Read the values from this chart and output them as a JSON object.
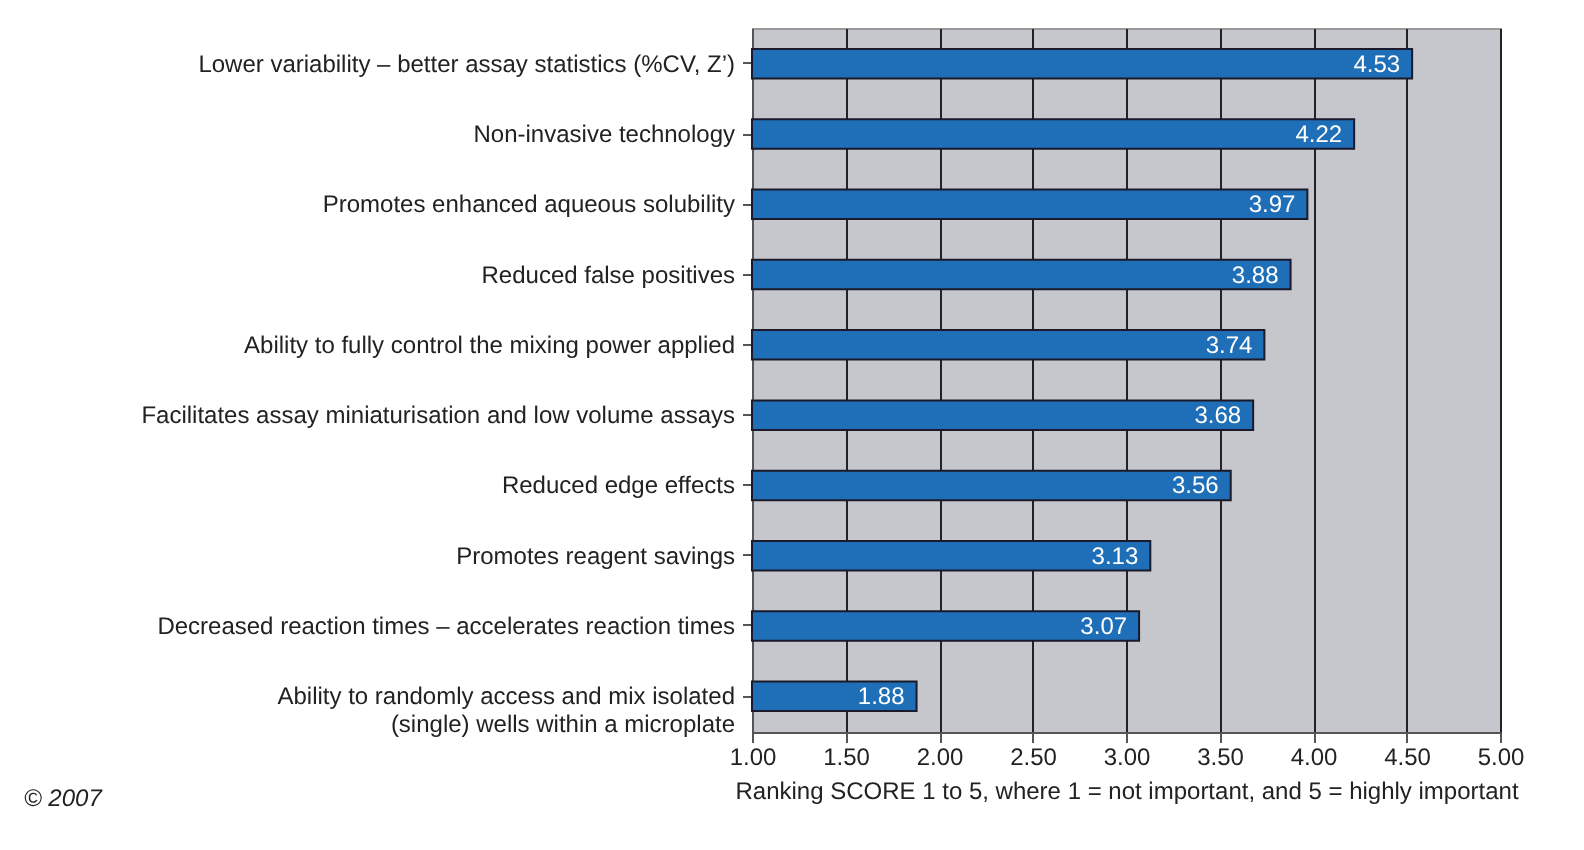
{
  "chart_data": {
    "type": "bar",
    "orientation": "horizontal",
    "xlabel": "Ranking SCORE 1 to 5, where 1 = not important, and 5 = highly important",
    "categories": [
      "Lower variability – better assay statistics (%CV, Z’)",
      "Non-invasive technology",
      "Promotes enhanced aqueous solubility",
      "Reduced false positives",
      "Ability to fully control the mixing power applied",
      "Facilitates assay miniaturisation and low volume assays",
      "Reduced edge effects",
      "Promotes reagent savings",
      "Decreased reaction times – accelerates reaction times",
      "Ability to randomly access and mix isolated\n(single) wells within a microplate"
    ],
    "values": [
      4.53,
      4.22,
      3.97,
      3.88,
      3.74,
      3.68,
      3.56,
      3.13,
      3.07,
      1.88
    ],
    "color": "#1f6fb8",
    "data_labels": true,
    "grid": "x",
    "xlim": [
      1,
      5
    ],
    "xticks": [
      {
        "value": 1,
        "label": "1.00"
      },
      {
        "value": 1.5,
        "label": "1.50"
      },
      {
        "value": 2,
        "label": "2.00"
      },
      {
        "value": 2.5,
        "label": "2.50"
      },
      {
        "value": 3,
        "label": "3.00"
      },
      {
        "value": 3.5,
        "label": "3.50"
      },
      {
        "value": 4,
        "label": "4.00"
      },
      {
        "value": 4.5,
        "label": "4.50"
      },
      {
        "value": 5,
        "label": "5.00"
      }
    ],
    "annotations": [
      "© 2007"
    ]
  }
}
